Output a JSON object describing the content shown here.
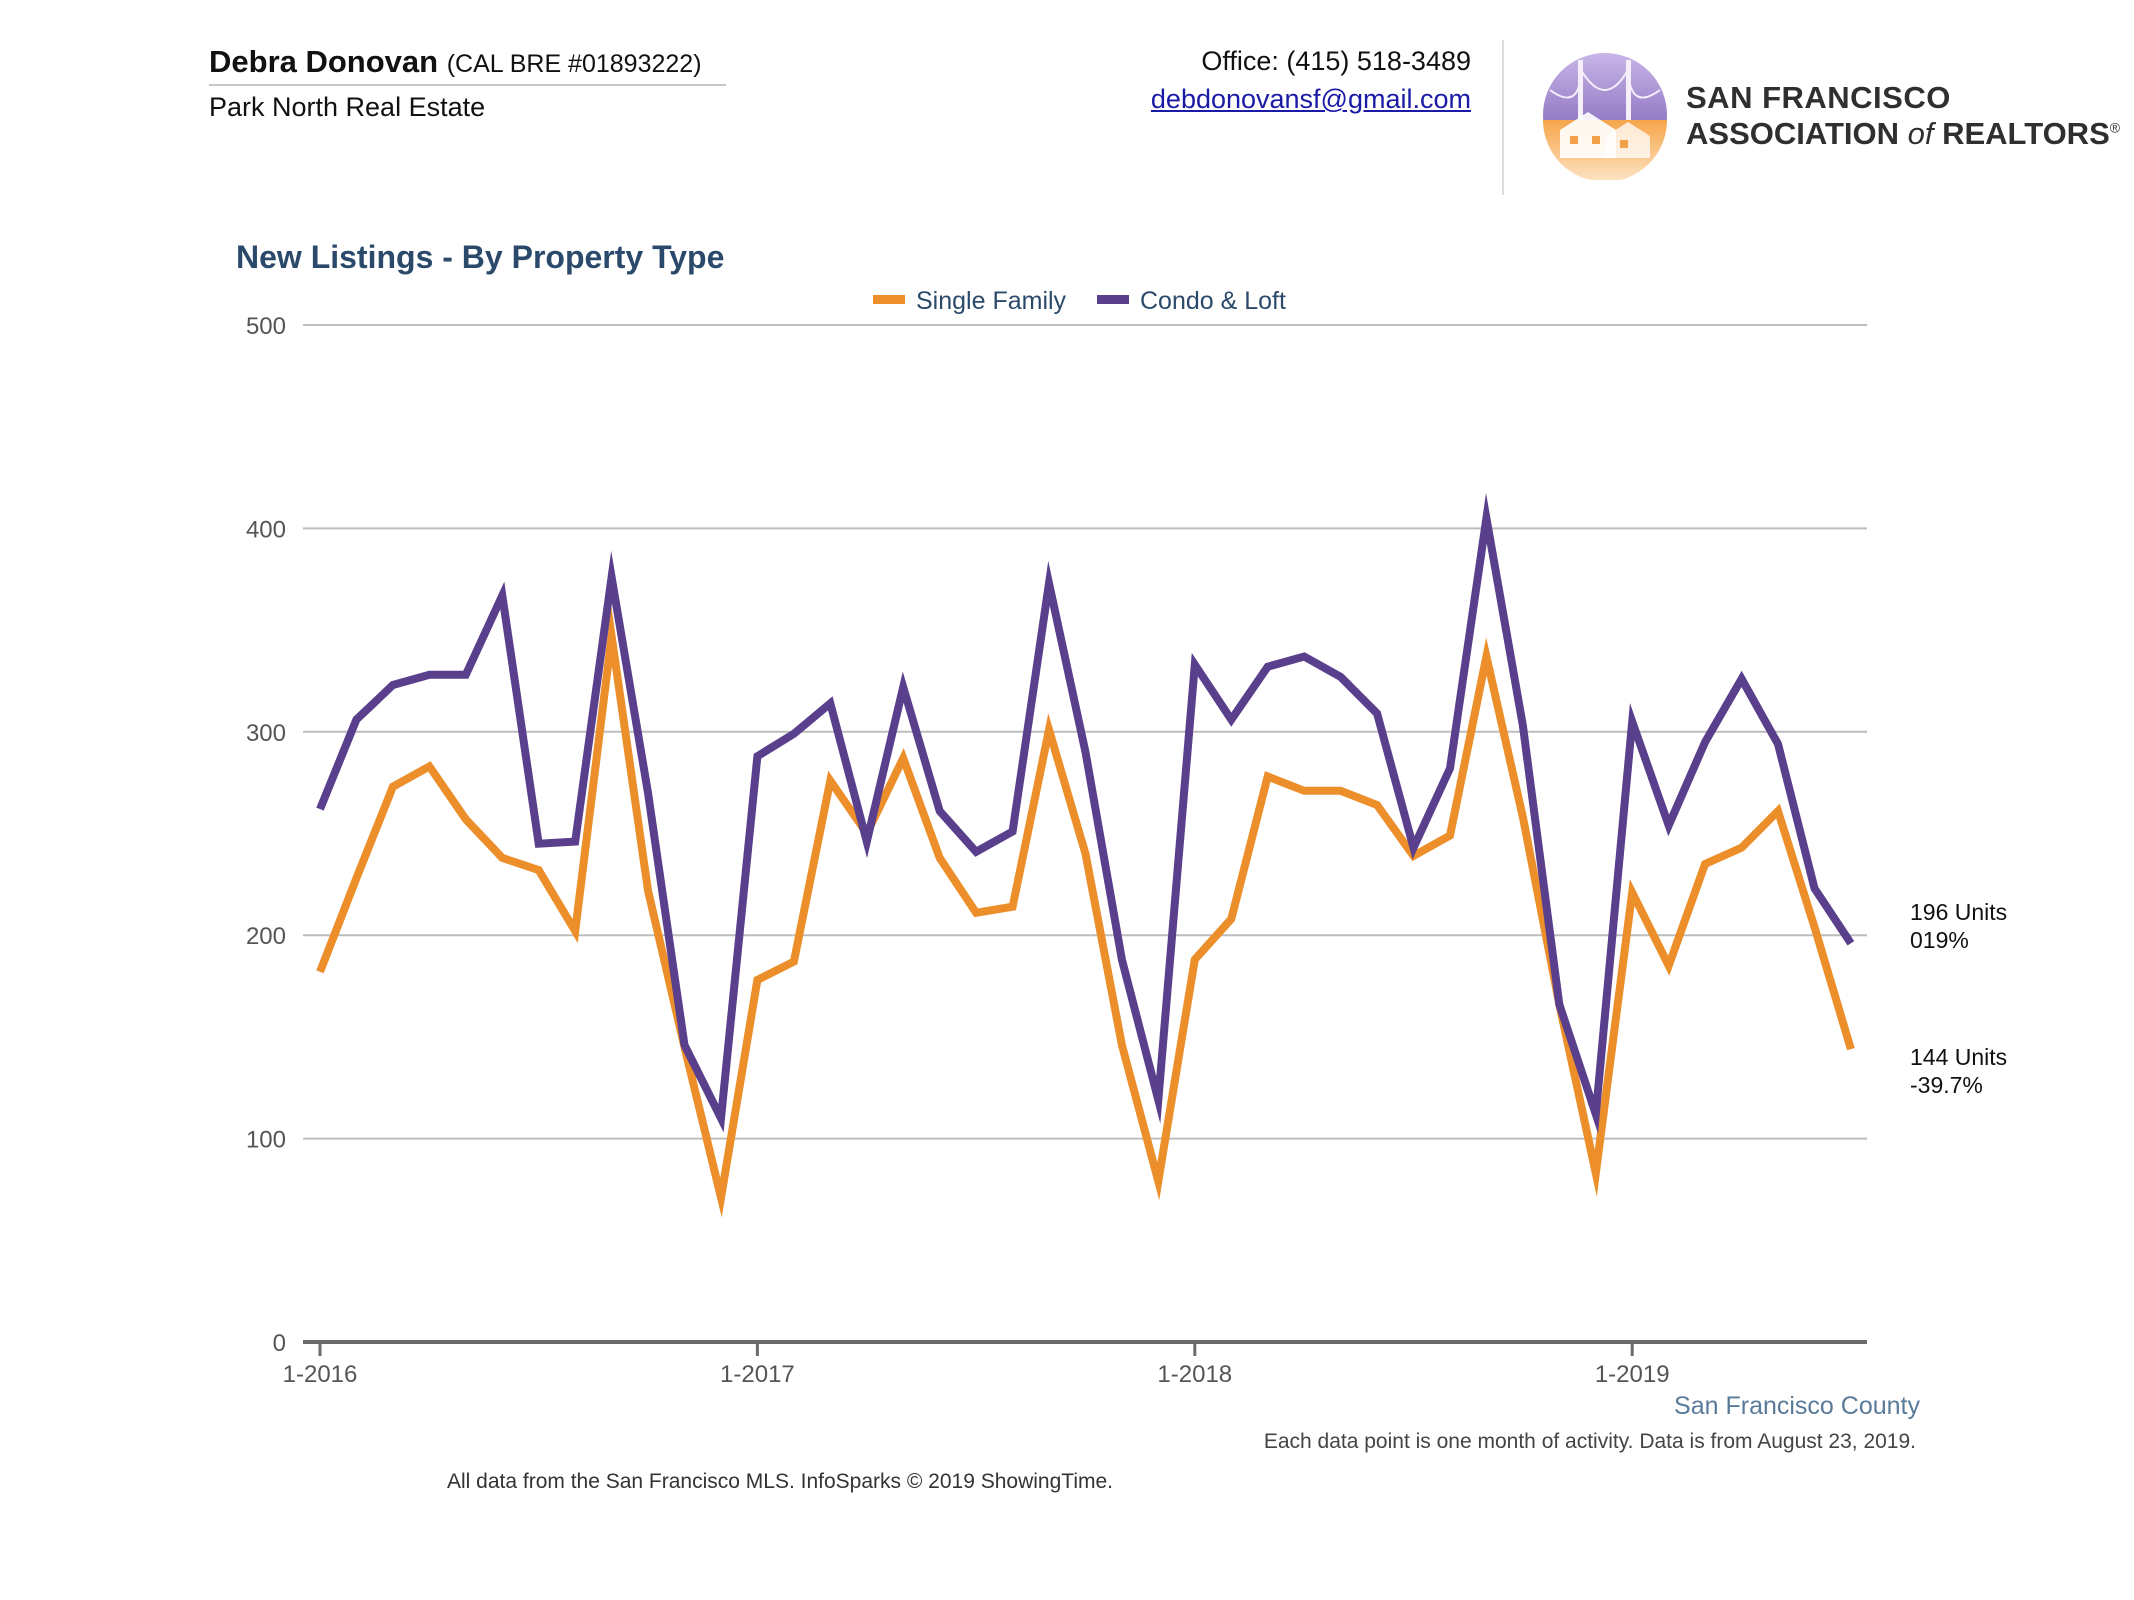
{
  "header": {
    "agent_name": "Debra Donovan",
    "agent_license": "(CAL BRE #01893222)",
    "agent_company": "Park North Real Estate",
    "office_phone": "Office: (415) 518-3489",
    "email": "debdonovansf@gmail.com",
    "org_name_line1": "SAN FRANCISCO",
    "org_name_line2_a": "ASSOCIATION",
    "org_name_line2_of": "of",
    "org_name_line2_b": "REALTORS",
    "org_mark": "®"
  },
  "footer": {
    "county": "San Francisco County",
    "footnote": "Each data point is one month of activity. Data is from August 23, 2019.",
    "source": "All data from the San Francisco MLS. InfoSparks © 2019 ShowingTime."
  },
  "colors": {
    "single_family": "#ec8f2a",
    "condo_loft": "#5a3f8c",
    "title": "#2b4a6b",
    "grid": "#bdbdbd",
    "axis": "#6b6b6b"
  },
  "chart_data": {
    "type": "line",
    "title": "New Listings - By Property Type",
    "xlabel": "",
    "ylabel": "",
    "ylim": [
      0,
      500
    ],
    "yticks": [
      0,
      100,
      200,
      300,
      400,
      500
    ],
    "x": [
      "2016-01",
      "2016-02",
      "2016-03",
      "2016-04",
      "2016-05",
      "2016-06",
      "2016-07",
      "2016-08",
      "2016-09",
      "2016-10",
      "2016-11",
      "2016-12",
      "2017-01",
      "2017-02",
      "2017-03",
      "2017-04",
      "2017-05",
      "2017-06",
      "2017-07",
      "2017-08",
      "2017-09",
      "2017-10",
      "2017-11",
      "2017-12",
      "2018-01",
      "2018-02",
      "2018-03",
      "2018-04",
      "2018-05",
      "2018-06",
      "2018-07",
      "2018-08",
      "2018-09",
      "2018-10",
      "2018-11",
      "2018-12",
      "2019-01",
      "2019-02",
      "2019-03",
      "2019-04",
      "2019-05",
      "2019-06",
      "2019-07"
    ],
    "xtick_labels": [
      "1-2016",
      "1-2017",
      "1-2018",
      "1-2019"
    ],
    "xtick_months": [
      "2016-01",
      "2017-01",
      "2018-01",
      "2019-01"
    ],
    "grid": true,
    "legend_position": "top-center",
    "series": [
      {
        "name": "Single Family",
        "values": [
          182,
          228,
          273,
          283,
          257,
          238,
          232,
          202,
          347,
          222,
          145,
          71,
          178,
          187,
          276,
          250,
          287,
          238,
          211,
          214,
          301,
          240,
          146,
          79,
          188,
          208,
          278,
          271,
          271,
          264,
          239,
          249,
          337,
          258,
          166,
          83,
          221,
          185,
          235,
          243,
          261,
          204,
          144
        ],
        "end_label": [
          "144 Units",
          "-39.7%"
        ]
      },
      {
        "name": "Condo & Loft",
        "values": [
          262,
          306,
          323,
          328,
          328,
          367,
          245,
          246,
          376,
          270,
          146,
          110,
          288,
          299,
          314,
          246,
          322,
          261,
          241,
          251,
          373,
          290,
          188,
          119,
          333,
          306,
          332,
          337,
          327,
          309,
          243,
          282,
          405,
          303,
          166,
          112,
          305,
          254,
          295,
          326,
          294,
          223,
          196
        ],
        "end_label": [
          "196 Units",
          "019%"
        ]
      }
    ]
  }
}
